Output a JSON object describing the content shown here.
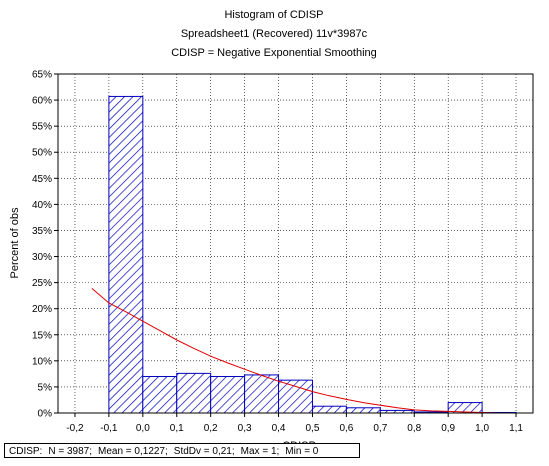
{
  "chart_data": {
    "type": "bar",
    "title": [
      "Histogram of CDISP",
      "Spreadsheet1  (Recovered) 11v*3987c",
      "CDISP = Negative Exponential Smoothing"
    ],
    "xlabel": "CDISP",
    "ylabel": "Percent of obs",
    "xlim": [
      -0.25,
      1.15
    ],
    "ylim": [
      0,
      65
    ],
    "xticks": [
      -0.2,
      -0.1,
      0.0,
      0.1,
      0.2,
      0.3,
      0.4,
      0.5,
      0.6,
      0.7,
      0.8,
      0.9,
      1.0,
      1.1
    ],
    "xtick_labels": [
      "-0,2",
      "-0,1",
      "0,0",
      "0,1",
      "0,2",
      "0,3",
      "0,4",
      "0,5",
      "0,6",
      "0,7",
      "0,8",
      "0,9",
      "1,0",
      "1,1"
    ],
    "yticks": [
      0,
      5,
      10,
      15,
      20,
      25,
      30,
      35,
      40,
      45,
      50,
      55,
      60,
      65
    ],
    "ytick_labels": [
      "0%",
      "5%",
      "10%",
      "15%",
      "20%",
      "25%",
      "30%",
      "35%",
      "40%",
      "45%",
      "50%",
      "55%",
      "60%",
      "65%"
    ],
    "bins": [
      {
        "start": -0.1,
        "end": 0.0,
        "value": 60.7
      },
      {
        "start": 0.0,
        "end": 0.1,
        "value": 7.0
      },
      {
        "start": 0.1,
        "end": 0.2,
        "value": 7.6
      },
      {
        "start": 0.2,
        "end": 0.3,
        "value": 7.0
      },
      {
        "start": 0.3,
        "end": 0.4,
        "value": 7.3
      },
      {
        "start": 0.4,
        "end": 0.5,
        "value": 6.3
      },
      {
        "start": 0.5,
        "end": 0.6,
        "value": 1.3
      },
      {
        "start": 0.6,
        "end": 0.7,
        "value": 1.0
      },
      {
        "start": 0.7,
        "end": 0.8,
        "value": 0.5
      },
      {
        "start": 0.8,
        "end": 0.9,
        "value": 0.2
      },
      {
        "start": 0.9,
        "end": 1.0,
        "value": 2.0
      },
      {
        "start": 1.0,
        "end": 1.1,
        "value": 0.1
      }
    ],
    "fit_curve": {
      "x": [
        -0.15,
        -0.1,
        -0.05,
        0.0,
        0.05,
        0.1,
        0.15,
        0.2,
        0.25,
        0.3,
        0.35,
        0.4,
        0.45,
        0.5,
        0.55,
        0.6,
        0.65,
        0.7,
        0.75,
        0.8,
        0.85,
        0.9,
        0.95,
        1.0,
        1.05
      ],
      "y": [
        23.9,
        21.1,
        19.4,
        17.6,
        15.8,
        14.0,
        12.4,
        10.9,
        9.6,
        8.4,
        7.2,
        6.1,
        5.1,
        4.1,
        3.3,
        2.6,
        2.0,
        1.5,
        1.0,
        0.6,
        0.4,
        0.3,
        0.2,
        0.1,
        0.0
      ]
    },
    "colors": {
      "bar_stroke": "#0000c0",
      "bar_hatch": "#0000c0",
      "curve": "#e00000"
    },
    "grid": true
  },
  "stats": {
    "variable": "CDISP:",
    "n": "N = 3987;",
    "mean": "Mean = 0,1227;",
    "stddev": "StdDv = 0,21;",
    "max": "Max = 1;",
    "min": "Min = 0"
  }
}
